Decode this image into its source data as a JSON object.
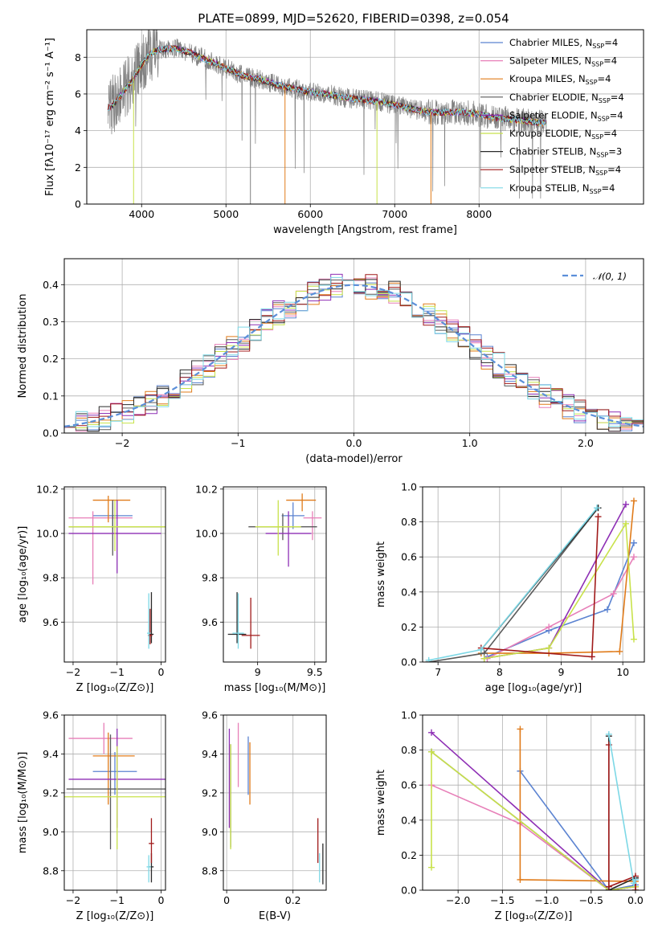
{
  "title": "PLATE=0899, MJD=52620, FIBERID=0398, z=0.054",
  "colors": {
    "Chabrier MILES": "#5b83d1",
    "Salpeter MILES": "#e77fb8",
    "Kroupa MILES": "#e07b1a",
    "Chabrier ELODIE": "#5a5a5a",
    "Salpeter ELODIE": "#8e2fb5",
    "Kroupa ELODIE": "#c8e24a",
    "Chabrier STELIB": "#2a2a2a",
    "Salpeter STELIB": "#a01a1a",
    "Kroupa STELIB": "#7dd8e6",
    "data": "#808080",
    "normal": "#5b8fd9"
  },
  "legend": [
    {
      "label": "Chabrier MILES, N",
      "sub": "SSP",
      "tail": "=4",
      "key": "Chabrier MILES"
    },
    {
      "label": "Salpeter MILES, N",
      "sub": "SSP",
      "tail": "=4",
      "key": "Salpeter MILES"
    },
    {
      "label": "Kroupa MILES, N",
      "sub": "SSP",
      "tail": "=4",
      "key": "Kroupa MILES"
    },
    {
      "label": "Chabrier ELODIE, N",
      "sub": "SSP",
      "tail": "=4",
      "key": "Chabrier ELODIE"
    },
    {
      "label": "Salpeter ELODIE, N",
      "sub": "SSP",
      "tail": "=4",
      "key": "Salpeter ELODIE"
    },
    {
      "label": "Kroupa ELODIE, N",
      "sub": "SSP",
      "tail": "=4",
      "key": "Kroupa ELODIE"
    },
    {
      "label": "Chabrier STELIB, N",
      "sub": "SSP",
      "tail": "=3",
      "key": "Chabrier STELIB"
    },
    {
      "label": "Salpeter STELIB, N",
      "sub": "SSP",
      "tail": "=4",
      "key": "Salpeter STELIB"
    },
    {
      "label": "Kroupa STELIB, N",
      "sub": "SSP",
      "tail": "=4",
      "key": "Kroupa STELIB"
    }
  ],
  "chart_data": [
    {
      "id": "spectrum",
      "type": "line",
      "xlabel": "wavelength [Angstrom, rest frame]",
      "ylabel": "Flux [fλ10⁻¹⁷ erg cm⁻² s⁻¹ A⁻¹]",
      "xlim": [
        3350,
        9950
      ],
      "ylim": [
        0,
        9.5
      ],
      "xticks": [
        4000,
        5000,
        6000,
        7000,
        8000
      ],
      "yticks": [
        0,
        2,
        4,
        6,
        8
      ],
      "continuum_x": [
        3600,
        3700,
        3800,
        3900,
        4000,
        4100,
        4200,
        4400,
        4600,
        4800,
        5000,
        5200,
        5400,
        5600,
        5800,
        6000,
        6200,
        6400,
        6600,
        6800,
        7000,
        7200,
        7400,
        7600,
        7800,
        8000,
        8200,
        8400,
        8600,
        8800
      ],
      "continuum_y": [
        5.2,
        5.6,
        6.2,
        6.8,
        7.6,
        8.2,
        8.4,
        8.5,
        8.2,
        7.8,
        7.4,
        7.0,
        6.8,
        6.5,
        6.3,
        6.1,
        6.0,
        5.8,
        5.7,
        5.6,
        5.4,
        5.2,
        5.0,
        5.0,
        5.0,
        4.9,
        4.7,
        4.6,
        4.5,
        4.4
      ],
      "noise_amplitude": 0.55,
      "dips": [
        {
          "x": 3905,
          "key": "Kroupa ELODIE"
        },
        {
          "x": 5700,
          "key": "Kroupa MILES"
        },
        {
          "x": 6790,
          "key": "Kroupa ELODIE"
        },
        {
          "x": 7430,
          "key": "Kroupa MILES"
        },
        {
          "x": 5290,
          "key": "data"
        }
      ]
    },
    {
      "id": "residuals",
      "type": "histogram",
      "xlabel": "(data-model)/error",
      "ylabel": "Normed distribution",
      "xlim": [
        -2.5,
        2.5
      ],
      "ylim": [
        0,
        0.47
      ],
      "xticks": [
        -2,
        -1,
        0,
        1,
        2
      ],
      "yticks": [
        0.0,
        0.1,
        0.2,
        0.3,
        0.4
      ],
      "bin_width": 0.1,
      "reference": {
        "label": "𝒩(0, 1)",
        "mu": 0,
        "sigma": 1
      }
    },
    {
      "id": "age-vs-Z",
      "type": "scatter",
      "xlabel": "Z [log₁₀(Z/Z⊙)]",
      "ylabel": "age  [log₁₀(age/yr)]",
      "xlim": [
        -2.2,
        0.1
      ],
      "ylim": [
        9.42,
        10.21
      ],
      "xticks": [
        -2,
        -1,
        0
      ],
      "yticks": [
        9.6,
        9.8,
        10.0,
        10.2
      ],
      "points": [
        {
          "key": "Chabrier MILES",
          "x": -1.1,
          "xerr": [
            0.45,
            0.45
          ],
          "y": 10.08,
          "yerr": [
            0.06,
            0.06
          ]
        },
        {
          "key": "Salpeter MILES",
          "x": -1.55,
          "xerr": [
            0.55,
            0.9
          ],
          "y": 10.07,
          "yerr": [
            0.3,
            0.03
          ]
        },
        {
          "key": "Kroupa MILES",
          "x": -1.2,
          "xerr": [
            0.35,
            0.5
          ],
          "y": 10.15,
          "yerr": [
            0.1,
            0.02
          ]
        },
        {
          "key": "Chabrier ELODIE",
          "x": -1.1,
          "xerr": [
            1.0,
            1.2
          ],
          "y": 10.03,
          "yerr": [
            0.13,
            0.12
          ]
        },
        {
          "key": "Salpeter ELODIE",
          "x": -1.0,
          "xerr": [
            1.1,
            1.0
          ],
          "y": 10.0,
          "yerr": [
            0.18,
            0.15
          ]
        },
        {
          "key": "Kroupa ELODIE",
          "x": -1.05,
          "xerr": [
            1.05,
            1.15
          ],
          "y": 10.03,
          "yerr": [
            0.11,
            0.12
          ]
        },
        {
          "key": "Chabrier STELIB",
          "x": -0.22,
          "xerr": [
            0.05,
            0.05
          ],
          "y": 9.545,
          "yerr": [
            0.04,
            0.19
          ]
        },
        {
          "key": "Salpeter STELIB",
          "x": -0.25,
          "xerr": [
            0.05,
            0.05
          ],
          "y": 9.54,
          "yerr": [
            0.04,
            0.12
          ]
        },
        {
          "key": "Kroupa STELIB",
          "x": -0.28,
          "xerr": [
            0.04,
            0.04
          ],
          "y": 9.55,
          "yerr": [
            0.07,
            0.18
          ]
        }
      ]
    },
    {
      "id": "age-vs-mass",
      "type": "scatter",
      "xlabel": "mass [log₁₀(M/M⊙)]",
      "ylabel": "",
      "xlim": [
        8.7,
        9.6
      ],
      "ylim": [
        9.42,
        10.21
      ],
      "xticks": [
        9.0,
        9.5
      ],
      "yticks": [
        9.6,
        9.8,
        10.0,
        10.2
      ],
      "points": [
        {
          "key": "Chabrier MILES",
          "x": 9.31,
          "xerr": [
            0.1,
            0.1
          ],
          "y": 10.08,
          "yerr": [
            0.06,
            0.06
          ]
        },
        {
          "key": "Salpeter MILES",
          "x": 9.48,
          "xerr": [
            0.08,
            0.08
          ],
          "y": 10.07,
          "yerr": [
            0.1,
            0.03
          ]
        },
        {
          "key": "Kroupa MILES",
          "x": 9.39,
          "xerr": [
            0.14,
            0.12
          ],
          "y": 10.15,
          "yerr": [
            0.05,
            0.03
          ]
        },
        {
          "key": "Chabrier ELODIE",
          "x": 9.22,
          "xerr": [
            0.3,
            0.3
          ],
          "y": 10.03,
          "yerr": [
            0.06,
            0.06
          ]
        },
        {
          "key": "Salpeter ELODIE",
          "x": 9.27,
          "xerr": [
            0.2,
            0.2
          ],
          "y": 10.0,
          "yerr": [
            0.15,
            0.1
          ]
        },
        {
          "key": "Kroupa ELODIE",
          "x": 9.18,
          "xerr": [
            0.2,
            0.2
          ],
          "y": 10.03,
          "yerr": [
            0.13,
            0.12
          ]
        },
        {
          "key": "Chabrier STELIB",
          "x": 8.82,
          "xerr": [
            0.08,
            0.08
          ],
          "y": 9.545,
          "yerr": [
            0.04,
            0.19
          ]
        },
        {
          "key": "Salpeter STELIB",
          "x": 8.94,
          "xerr": [
            0.08,
            0.08
          ],
          "y": 9.54,
          "yerr": [
            0.06,
            0.17
          ]
        },
        {
          "key": "Kroupa STELIB",
          "x": 8.83,
          "xerr": [
            0.05,
            0.05
          ],
          "y": 9.55,
          "yerr": [
            0.07,
            0.18
          ]
        }
      ]
    },
    {
      "id": "massweight-vs-age",
      "type": "line",
      "xlabel": "age  [log₁₀(age/yr)]",
      "ylabel": "mass weight",
      "xlim": [
        6.75,
        10.35
      ],
      "ylim": [
        0,
        1.0
      ],
      "xticks": [
        7,
        8,
        9,
        10
      ],
      "yticks": [
        0.0,
        0.2,
        0.4,
        0.6,
        0.8,
        1.0
      ],
      "series": [
        {
          "key": "Chabrier MILES",
          "x": [
            7.8,
            8.8,
            9.75,
            10.18
          ],
          "y": [
            0.03,
            0.18,
            0.3,
            0.68
          ]
        },
        {
          "key": "Salpeter MILES",
          "x": [
            7.8,
            8.8,
            9.85,
            10.18
          ],
          "y": [
            0.02,
            0.2,
            0.39,
            0.6
          ]
        },
        {
          "key": "Kroupa MILES",
          "x": [
            7.7,
            8.8,
            9.95,
            10.18
          ],
          "y": [
            0.05,
            0.05,
            0.06,
            0.92
          ]
        },
        {
          "key": "Chabrier ELODIE",
          "x": [
            6.85,
            7.75,
            9.6
          ],
          "y": [
            0.0,
            0.05,
            0.88
          ]
        },
        {
          "key": "Salpeter ELODIE",
          "x": [
            7.75,
            8.8,
            10.05
          ],
          "y": [
            0.02,
            0.08,
            0.9
          ]
        },
        {
          "key": "Kroupa ELODIE",
          "x": [
            7.75,
            8.8,
            10.05,
            10.18
          ],
          "y": [
            0.02,
            0.08,
            0.79,
            0.13
          ]
        },
        {
          "key": "Chabrier STELIB",
          "x": [
            7.7,
            9.6
          ],
          "y": [
            0.07,
            0.88
          ]
        },
        {
          "key": "Salpeter STELIB",
          "x": [
            7.7,
            9.5,
            9.6
          ],
          "y": [
            0.08,
            0.03,
            0.83
          ]
        },
        {
          "key": "Kroupa STELIB",
          "x": [
            6.85,
            7.7,
            9.58
          ],
          "y": [
            0.01,
            0.07,
            0.88
          ]
        }
      ]
    },
    {
      "id": "mass-vs-Z",
      "type": "scatter",
      "xlabel": "Z [log₁₀(Z/Z⊙)]",
      "ylabel": "mass [log₁₀(M/M⊙)]",
      "xlim": [
        -2.2,
        0.1
      ],
      "ylim": [
        8.7,
        9.6
      ],
      "xticks": [
        -2,
        -1,
        0
      ],
      "yticks": [
        8.8,
        9.0,
        9.2,
        9.4,
        9.6
      ],
      "points": [
        {
          "key": "Chabrier MILES",
          "x": -1.05,
          "xerr": [
            0.5,
            0.5
          ],
          "y": 9.31,
          "yerr": [
            0.12,
            0.1
          ]
        },
        {
          "key": "Salpeter MILES",
          "x": -1.3,
          "xerr": [
            0.8,
            0.65
          ],
          "y": 9.48,
          "yerr": [
            0.08,
            0.08
          ]
        },
        {
          "key": "Kroupa MILES",
          "x": -1.2,
          "xerr": [
            0.35,
            0.6
          ],
          "y": 9.39,
          "yerr": [
            0.25,
            0.12
          ]
        },
        {
          "key": "Chabrier ELODIE",
          "x": -1.15,
          "xerr": [
            1.0,
            1.25
          ],
          "y": 9.22,
          "yerr": [
            0.31,
            0.28
          ]
        },
        {
          "key": "Salpeter ELODIE",
          "x": -1.0,
          "xerr": [
            1.1,
            1.1
          ],
          "y": 9.27,
          "yerr": [
            0.25,
            0.26
          ]
        },
        {
          "key": "Kroupa ELODIE",
          "x": -1.0,
          "xerr": [
            1.2,
            1.1
          ],
          "y": 9.18,
          "yerr": [
            0.27,
            0.26
          ]
        },
        {
          "key": "Chabrier STELIB",
          "x": -0.22,
          "xerr": [
            0.05,
            0.05
          ],
          "y": 8.82,
          "yerr": [
            0.08,
            0.07
          ]
        },
        {
          "key": "Salpeter STELIB",
          "x": -0.22,
          "xerr": [
            0.06,
            0.06
          ],
          "y": 8.94,
          "yerr": [
            0.1,
            0.13
          ]
        },
        {
          "key": "Kroupa STELIB",
          "x": -0.28,
          "xerr": [
            0.05,
            0.05
          ],
          "y": 8.82,
          "yerr": [
            0.08,
            0.06
          ]
        }
      ]
    },
    {
      "id": "mass-vs-EBV",
      "type": "scatter",
      "xlabel": "E(B-V)",
      "ylabel": "",
      "xlim": [
        -0.01,
        0.3
      ],
      "ylim": [
        8.7,
        9.6
      ],
      "xticks": [
        0.0,
        0.2
      ],
      "yticks": [
        8.8,
        9.0,
        9.2,
        9.4,
        9.6
      ],
      "points": [
        {
          "key": "Chabrier MILES",
          "x": 0.065,
          "y": 9.31,
          "yerr": [
            0.12,
            0.18
          ]
        },
        {
          "key": "Salpeter MILES",
          "x": 0.035,
          "y": 9.48,
          "yerr": [
            0.25,
            0.08
          ]
        },
        {
          "key": "Kroupa MILES",
          "x": 0.07,
          "y": 9.39,
          "yerr": [
            0.25,
            0.07
          ]
        },
        {
          "key": "Chabrier ELODIE",
          "x": 0.012,
          "y": 9.22,
          "yerr": [
            0.3,
            0.23
          ]
        },
        {
          "key": "Salpeter ELODIE",
          "x": 0.008,
          "y": 9.27,
          "yerr": [
            0.25,
            0.26
          ]
        },
        {
          "key": "Kroupa ELODIE",
          "x": 0.012,
          "y": 9.18,
          "yerr": [
            0.27,
            0.27
          ]
        },
        {
          "key": "Chabrier STELIB",
          "x": 0.29,
          "y": 8.82,
          "yerr": [
            0.09,
            0.12
          ]
        },
        {
          "key": "Salpeter STELIB",
          "x": 0.275,
          "y": 8.94,
          "yerr": [
            0.1,
            0.13
          ]
        },
        {
          "key": "Kroupa STELIB",
          "x": 0.28,
          "y": 8.82,
          "yerr": [
            0.08,
            0.07
          ]
        }
      ]
    },
    {
      "id": "massweight-vs-Z",
      "type": "line",
      "xlabel": "Z [log₁₀(Z/Z⊙)]",
      "ylabel": "mass weight",
      "xlim": [
        -2.4,
        0.1
      ],
      "ylim": [
        0,
        1.0
      ],
      "xticks": [
        -2.0,
        -1.5,
        -1.0,
        -0.5,
        0.0
      ],
      "yticks": [
        0.0,
        0.2,
        0.4,
        0.6,
        0.8,
        1.0
      ],
      "series": [
        {
          "key": "Chabrier MILES",
          "x": [
            -1.3,
            -0.3,
            0.0
          ],
          "y": [
            0.68,
            0.0,
            0.03
          ]
        },
        {
          "key": "Salpeter MILES",
          "x": [
            -2.3,
            -1.3,
            -0.3,
            0.0
          ],
          "y": [
            0.6,
            0.38,
            0.0,
            0.02
          ]
        },
        {
          "key": "Kroupa MILES",
          "x": [
            -1.3,
            -1.3,
            0.0,
            0.0
          ],
          "y": [
            0.92,
            0.06,
            0.05,
            0.0
          ]
        },
        {
          "key": "Chabrier ELODIE",
          "x": [
            -2.3,
            -0.3,
            0.0
          ],
          "y": [
            0.79,
            0.0,
            0.02
          ]
        },
        {
          "key": "Salpeter ELODIE",
          "x": [
            -2.3,
            -0.3,
            0.0
          ],
          "y": [
            0.9,
            0.0,
            0.02
          ]
        },
        {
          "key": "Kroupa ELODIE",
          "x": [
            -2.3,
            -2.3,
            -0.3,
            0.0
          ],
          "y": [
            0.13,
            0.79,
            0.0,
            0.02
          ]
        },
        {
          "key": "Chabrier STELIB",
          "x": [
            -0.3,
            -0.3,
            0.0
          ],
          "y": [
            0.88,
            0.0,
            0.07
          ]
        },
        {
          "key": "Salpeter STELIB",
          "x": [
            -0.3,
            -0.3,
            0.0,
            0.0
          ],
          "y": [
            0.83,
            0.02,
            0.08,
            0.0
          ]
        },
        {
          "key": "Kroupa STELIB",
          "x": [
            -0.3,
            -0.02,
            0.0
          ],
          "y": [
            0.89,
            0.04,
            0.06
          ]
        }
      ]
    }
  ]
}
